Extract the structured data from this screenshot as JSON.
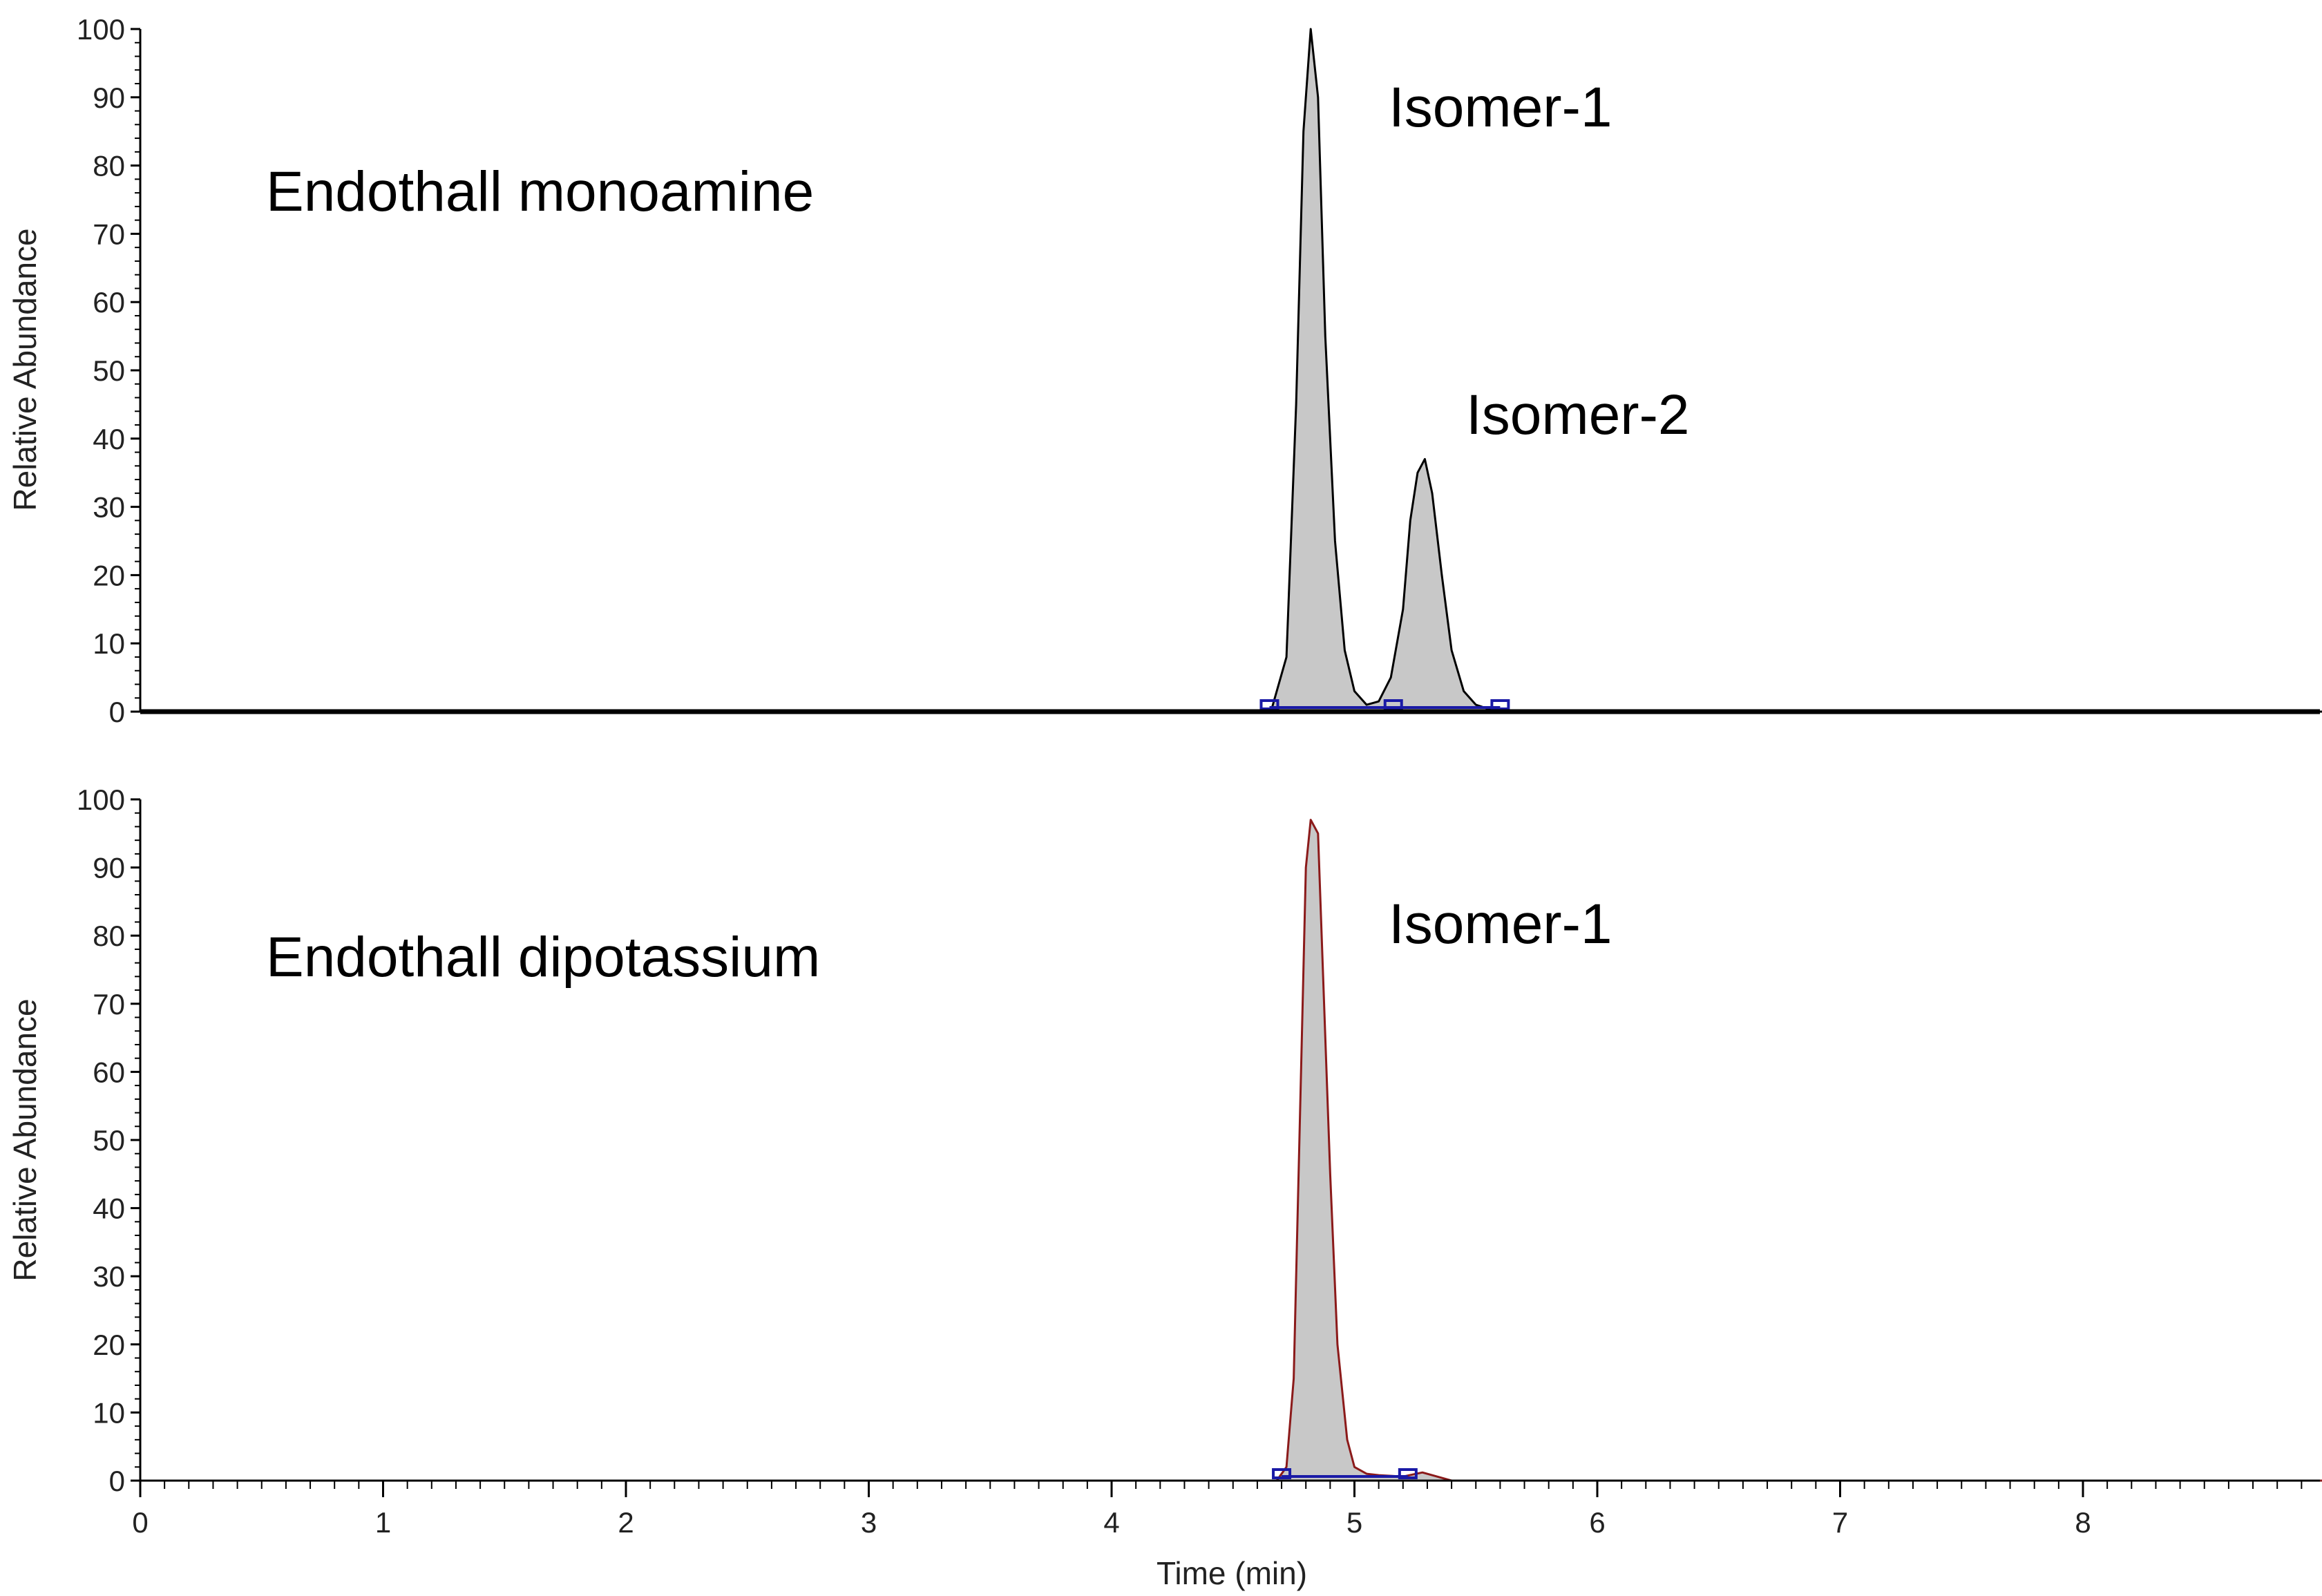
{
  "chart_data": [
    {
      "type": "area",
      "panel_label": "Endothall monoamine",
      "ylabel": "Relative Abundance",
      "ylim": [
        0,
        100
      ],
      "xlim": [
        0,
        9
      ],
      "y_ticks": [
        "0",
        "10",
        "20",
        "30",
        "40",
        "50",
        "60",
        "70",
        "80",
        "90",
        "100"
      ],
      "line_color": "#000000",
      "fill_color": "#c8c8c8",
      "baseline_color": "#1a1aa6",
      "annotations": [
        {
          "text": "Isomer-1",
          "x": 5.2,
          "y": 88
        },
        {
          "text": "Isomer-2",
          "x": 5.5,
          "y": 43
        }
      ],
      "series": [
        {
          "x": [
            0,
            4.6,
            4.66,
            4.72,
            4.76,
            4.79,
            4.82,
            4.85,
            4.88,
            4.92,
            4.96,
            5.0,
            5.05,
            5.1,
            5.15,
            5.2,
            5.23,
            5.26,
            5.29,
            5.32,
            5.36,
            5.4,
            5.45,
            5.5,
            5.56,
            5.62,
            6.0,
            9.0
          ],
          "y": [
            0,
            0,
            0.5,
            8,
            45,
            85,
            100,
            90,
            55,
            25,
            9,
            3,
            1,
            1.5,
            5,
            15,
            28,
            35,
            37,
            32,
            20,
            9,
            3,
            1,
            0.3,
            0,
            0,
            0
          ]
        }
      ],
      "integration_markers_x": [
        4.65,
        5.16,
        5.6
      ]
    },
    {
      "type": "area",
      "panel_label": "Endothall dipotassium",
      "xlabel": "Time (min)",
      "ylabel": "Relative Abundance",
      "ylim": [
        0,
        100
      ],
      "xlim": [
        0,
        9
      ],
      "x_ticks": [
        "0",
        "1",
        "2",
        "3",
        "4",
        "5",
        "6",
        "7",
        "8"
      ],
      "y_ticks": [
        "0",
        "10",
        "20",
        "30",
        "40",
        "50",
        "60",
        "70",
        "80",
        "90",
        "100"
      ],
      "line_color": "#8b1a1a",
      "fill_color": "#c8c8c8",
      "baseline_color": "#1a1aa6",
      "annotations": [
        {
          "text": "Isomer-1",
          "x": 5.2,
          "y": 80
        }
      ],
      "series": [
        {
          "x": [
            0,
            4.68,
            4.72,
            4.75,
            4.78,
            4.8,
            4.82,
            4.85,
            4.87,
            4.9,
            4.93,
            4.97,
            5.0,
            5.05,
            5.1,
            5.2,
            5.28,
            5.34,
            5.4,
            9.0
          ],
          "y": [
            0,
            0,
            2,
            15,
            60,
            90,
            97,
            95,
            75,
            45,
            20,
            6,
            2,
            1,
            0.8,
            0.6,
            1.2,
            0.6,
            0,
            0
          ]
        }
      ],
      "integration_markers_x": [
        4.7,
        5.22
      ]
    }
  ]
}
